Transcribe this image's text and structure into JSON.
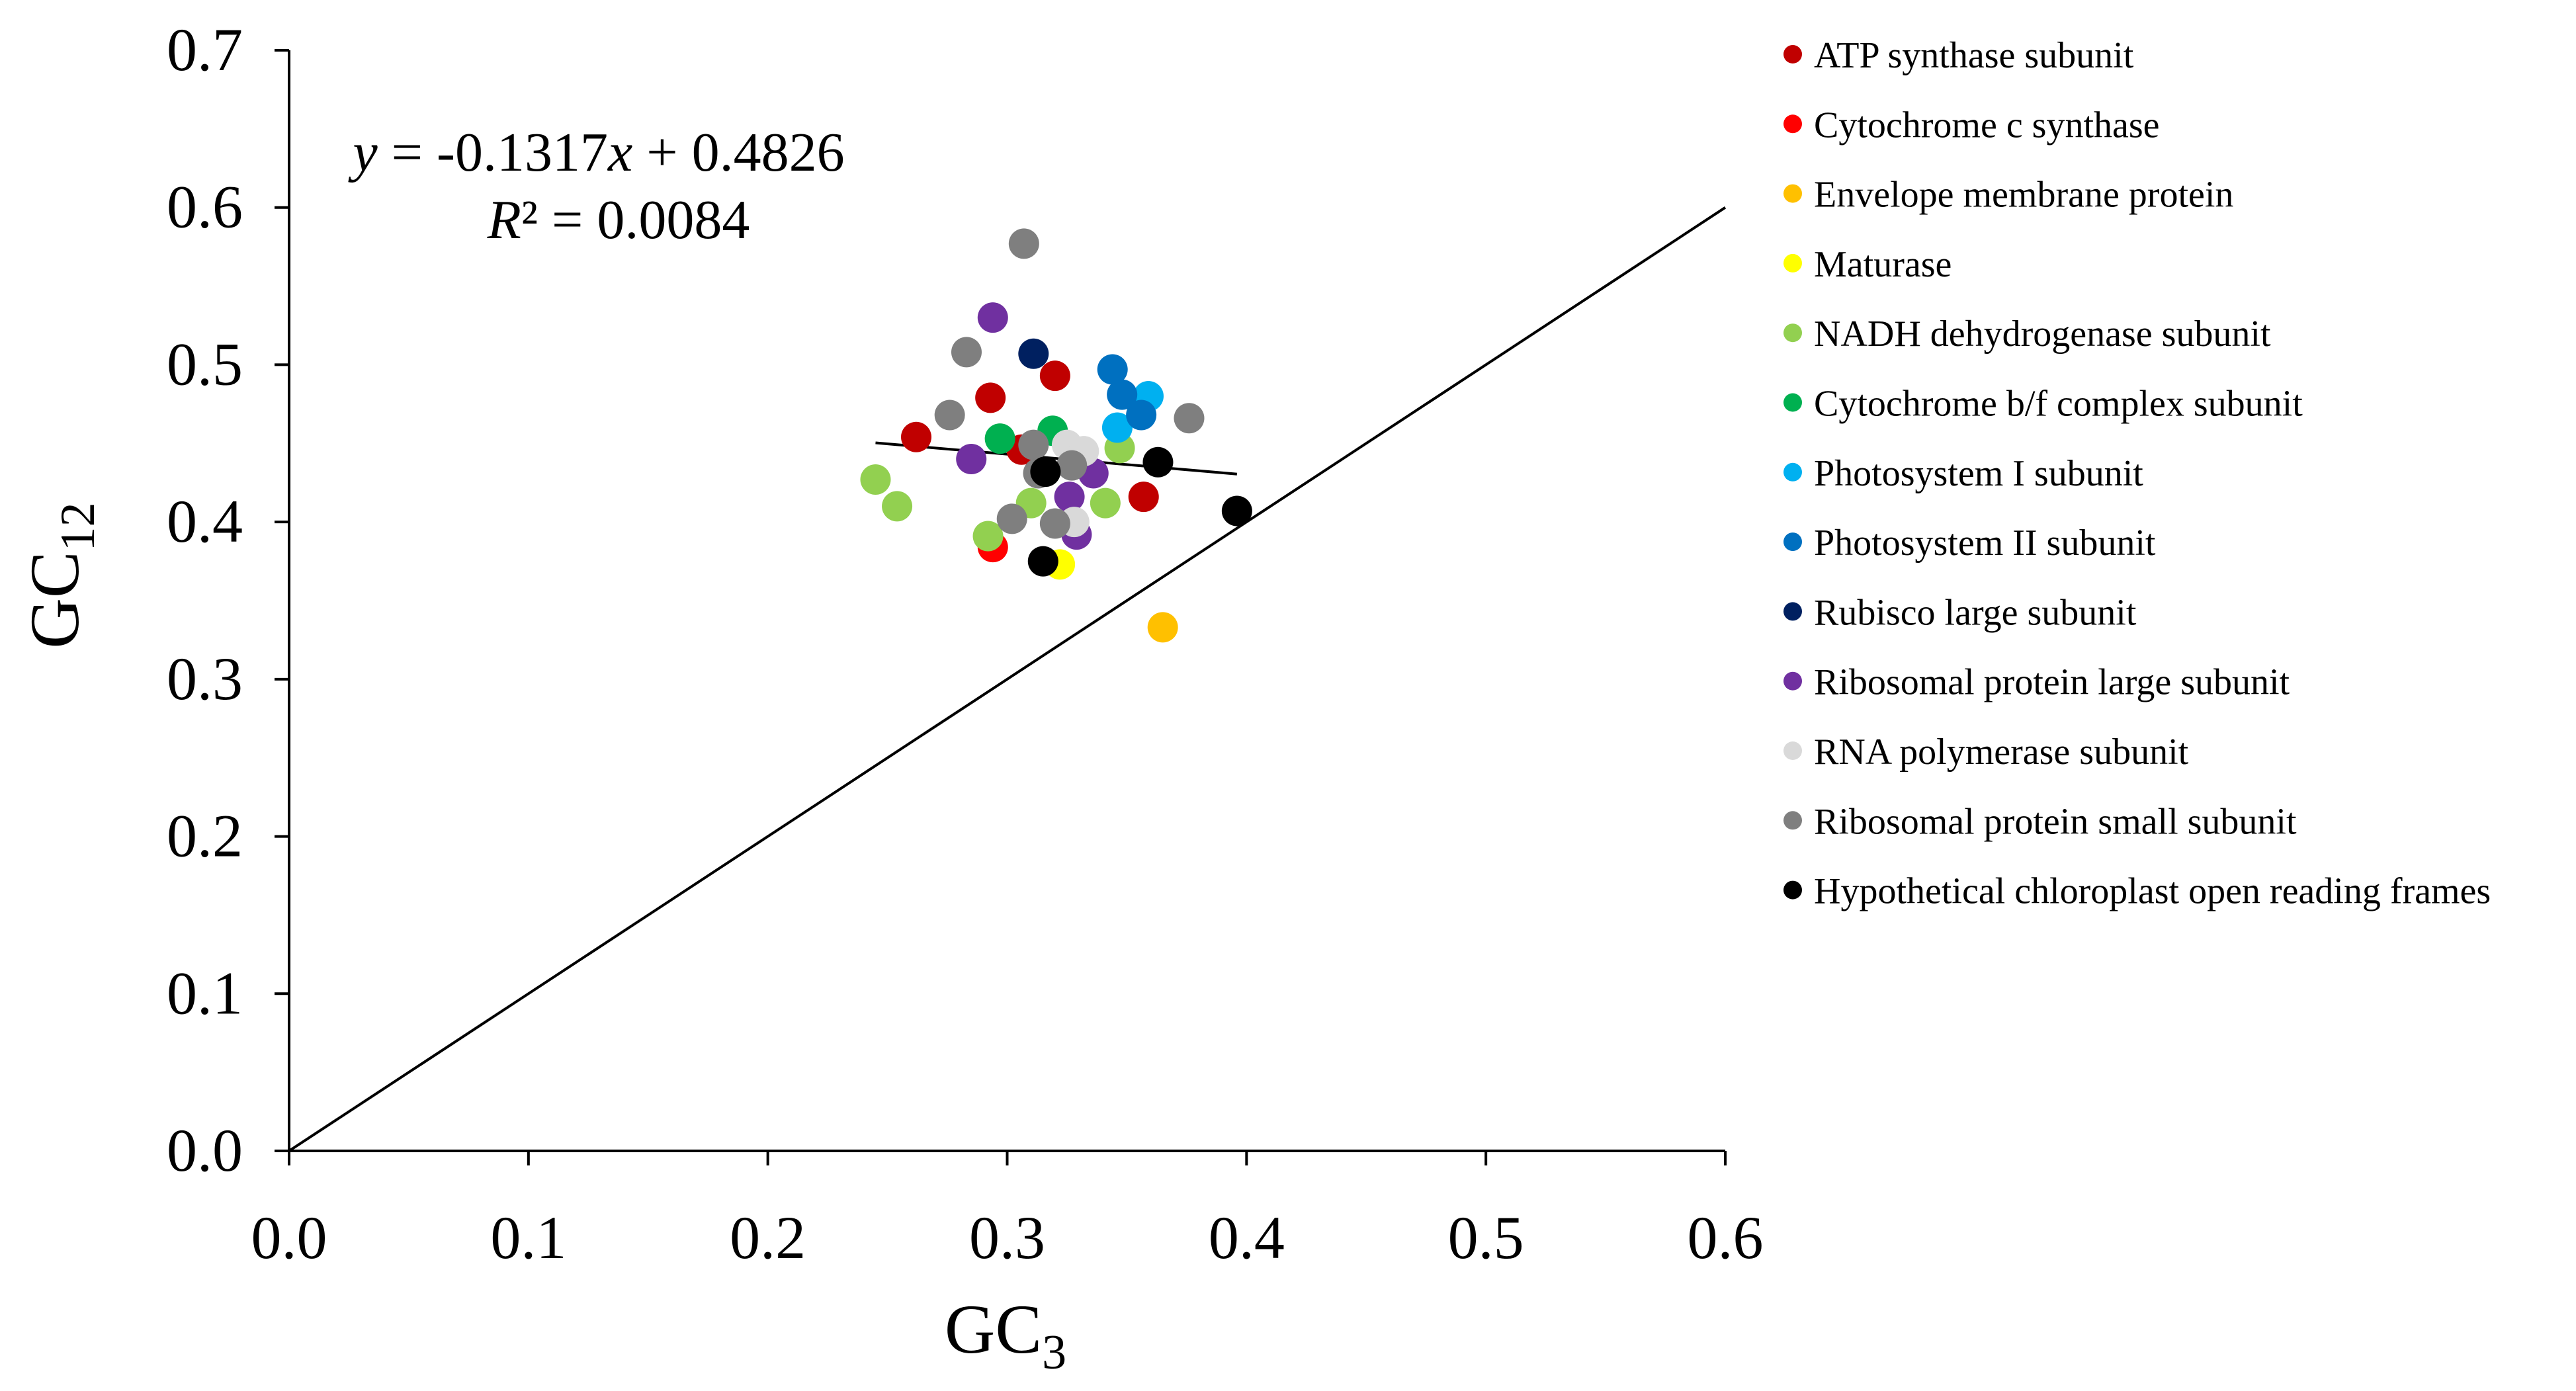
{
  "chart_data": {
    "type": "scatter",
    "title": "",
    "xlabel": "GC",
    "xlabel_sub": "3",
    "ylabel": "GC",
    "ylabel_sub": "12",
    "xlim": [
      0,
      0.6
    ],
    "ylim": [
      0,
      0.7
    ],
    "xticks": [
      0.0,
      0.1,
      0.2,
      0.3,
      0.4,
      0.5,
      0.6
    ],
    "yticks": [
      0.0,
      0.1,
      0.2,
      0.3,
      0.4,
      0.5,
      0.6,
      0.7
    ],
    "xtick_labels": [
      "0.0",
      "0.1",
      "0.2",
      "0.3",
      "0.4",
      "0.5",
      "0.6"
    ],
    "ytick_labels": [
      "0.0",
      "0.1",
      "0.2",
      "0.3",
      "0.4",
      "0.5",
      "0.6",
      "0.7"
    ],
    "equation": {
      "y_var": "y",
      "mid": " = -0.1317",
      "x_var": "x",
      "tail": " + 0.4826",
      "r2_var": "R",
      "r2_tail": "² = 0.0084"
    },
    "reference_line": {
      "x": [
        0,
        0.6
      ],
      "y": [
        0,
        0.6
      ]
    },
    "trendline": {
      "slope": -0.1317,
      "intercept": 0.4826,
      "x_range": [
        0.245,
        0.396
      ]
    },
    "legend_position": "right",
    "series": [
      {
        "name": "ATP synthase subunit",
        "color": "#C00000",
        "points": [
          [
            0.262,
            0.454
          ],
          [
            0.293,
            0.479
          ],
          [
            0.32,
            0.493
          ],
          [
            0.306,
            0.446
          ],
          [
            0.357,
            0.416
          ]
        ]
      },
      {
        "name": "Cytochrome c synthase",
        "color": "#FF0000",
        "points": [
          [
            0.294,
            0.384
          ]
        ]
      },
      {
        "name": "Envelope membrane protein",
        "color": "#FFC000",
        "points": [
          [
            0.365,
            0.333
          ]
        ]
      },
      {
        "name": "Maturase",
        "color": "#FFFF00",
        "points": [
          [
            0.322,
            0.373
          ]
        ]
      },
      {
        "name": "NADH dehydrogenase subunit",
        "color": "#92D050",
        "points": [
          [
            0.245,
            0.427
          ],
          [
            0.254,
            0.41
          ],
          [
            0.292,
            0.391
          ],
          [
            0.31,
            0.412
          ],
          [
            0.341,
            0.412
          ],
          [
            0.347,
            0.447
          ]
        ]
      },
      {
        "name": "Cytochrome b/f complex subunit",
        "color": "#00B050",
        "points": [
          [
            0.297,
            0.453
          ],
          [
            0.319,
            0.458
          ]
        ]
      },
      {
        "name": "Photosystem I subunit",
        "color": "#00B0F0",
        "points": [
          [
            0.359,
            0.48
          ],
          [
            0.346,
            0.46
          ]
        ]
      },
      {
        "name": "Photosystem II subunit",
        "color": "#0070C0",
        "points": [
          [
            0.344,
            0.497
          ],
          [
            0.348,
            0.481
          ],
          [
            0.356,
            0.468
          ]
        ]
      },
      {
        "name": "Rubisco large subunit",
        "color": "#002060",
        "points": [
          [
            0.311,
            0.507
          ]
        ]
      },
      {
        "name": "Ribosomal protein large subunit",
        "color": "#7030A0",
        "points": [
          [
            0.294,
            0.53
          ],
          [
            0.285,
            0.44
          ],
          [
            0.326,
            0.416
          ],
          [
            0.329,
            0.392
          ],
          [
            0.336,
            0.431
          ]
        ]
      },
      {
        "name": "RNA polymerase subunit",
        "color": "#D9D9D9",
        "points": [
          [
            0.325,
            0.449
          ],
          [
            0.332,
            0.445
          ],
          [
            0.328,
            0.4
          ]
        ]
      },
      {
        "name": "Ribosomal protein small subunit",
        "color": "#7F7F7F",
        "points": [
          [
            0.307,
            0.577
          ],
          [
            0.283,
            0.508
          ],
          [
            0.276,
            0.468
          ],
          [
            0.376,
            0.466
          ],
          [
            0.311,
            0.449
          ],
          [
            0.313,
            0.431
          ],
          [
            0.302,
            0.402
          ],
          [
            0.32,
            0.399
          ],
          [
            0.327,
            0.436
          ]
        ]
      },
      {
        "name": "Hypothetical chloroplast open reading frames",
        "color": "#000000",
        "points": [
          [
            0.363,
            0.438
          ],
          [
            0.316,
            0.432
          ],
          [
            0.396,
            0.407
          ],
          [
            0.315,
            0.375
          ]
        ]
      }
    ]
  }
}
